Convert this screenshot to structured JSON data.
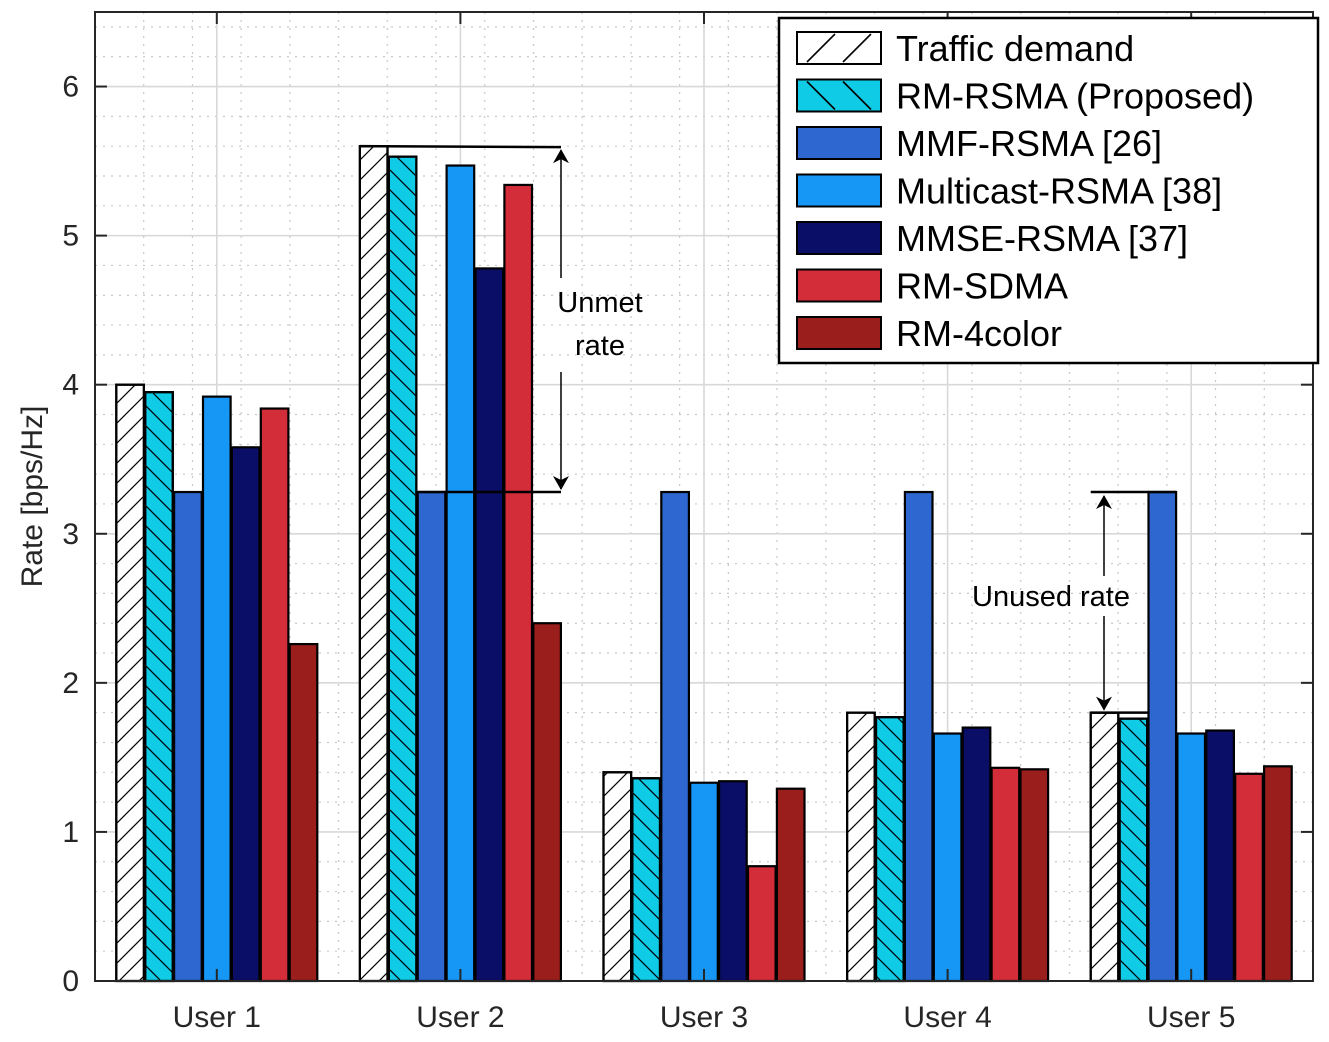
{
  "chart_data": {
    "type": "bar",
    "title": "",
    "xlabel": "",
    "ylabel": "Rate [bps/Hz]",
    "ylim": [
      0,
      6.5
    ],
    "yticks": [
      "0",
      "1",
      "2",
      "3",
      "4",
      "5",
      "6"
    ],
    "grid": true,
    "minor_grid": true,
    "legend_position": "top-right",
    "categories": [
      "User 1",
      "User 2",
      "User 3",
      "User 4",
      "User 5"
    ],
    "series": [
      {
        "name": "Traffic demand",
        "color": "#ffffff",
        "pattern": "hatch-forward",
        "values": [
          4.0,
          5.6,
          1.4,
          1.8,
          1.8
        ]
      },
      {
        "name": "RM-RSMA (Proposed)",
        "color": "#0fcbe6",
        "pattern": "hatch-back",
        "values": [
          3.95,
          5.53,
          1.36,
          1.77,
          1.76
        ]
      },
      {
        "name": "MMF-RSMA [26]",
        "color": "#2d67cf",
        "pattern": "none",
        "values": [
          3.28,
          3.28,
          3.28,
          3.28,
          3.28
        ]
      },
      {
        "name": "Multicast-RSMA [38]",
        "color": "#1697f5",
        "pattern": "none",
        "values": [
          3.92,
          5.47,
          1.33,
          1.66,
          1.66
        ]
      },
      {
        "name": "MMSE-RSMA [37]",
        "color": "#0a0e66",
        "pattern": "none",
        "values": [
          3.58,
          4.78,
          1.34,
          1.7,
          1.68
        ]
      },
      {
        "name": "RM-SDMA",
        "color": "#d42d3a",
        "pattern": "none",
        "values": [
          3.84,
          5.34,
          0.77,
          1.43,
          1.39
        ]
      },
      {
        "name": "RM-4color",
        "color": "#9a1f1c",
        "pattern": "none",
        "values": [
          2.26,
          2.4,
          1.29,
          1.42,
          1.44
        ]
      }
    ],
    "annotations": [
      {
        "id": "unmet",
        "lines": [
          "Unmet",
          "rate"
        ],
        "category": "User 2",
        "from_value": 5.6,
        "to_value": 3.28
      },
      {
        "id": "unused",
        "lines": [
          "Unused rate"
        ],
        "category": "User 5",
        "from_value": 1.8,
        "to_value": 3.28
      }
    ]
  }
}
